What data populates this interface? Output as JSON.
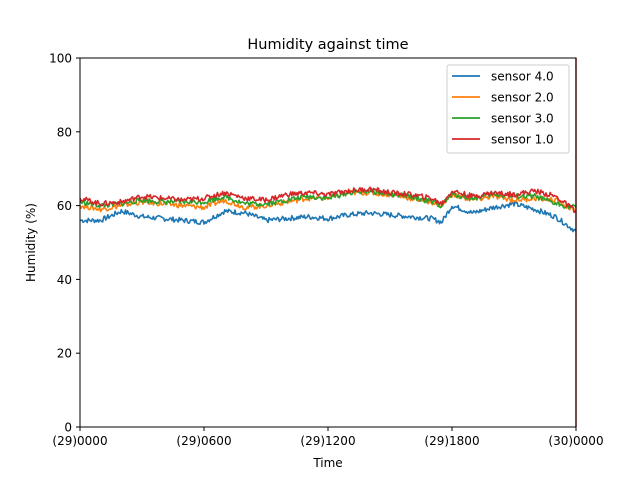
{
  "chart_data": {
    "type": "line",
    "title": "Humidity against  time",
    "xlabel": "Time",
    "ylabel": "Humidity (%)",
    "xlim": [
      0,
      24
    ],
    "ylim": [
      0,
      100
    ],
    "x_ticks": [
      {
        "value": 0,
        "label": "(29)0000"
      },
      {
        "value": 6,
        "label": "(29)0600"
      },
      {
        "value": 12,
        "label": "(29)1200"
      },
      {
        "value": 18,
        "label": "(29)1800"
      },
      {
        "value": 24,
        "label": "(30)0000"
      }
    ],
    "y_ticks": [
      0,
      20,
      40,
      60,
      80,
      100
    ],
    "grid": false,
    "legend_position": "top-right",
    "x": [
      0,
      1,
      2,
      3,
      4,
      5,
      6,
      7,
      8,
      9,
      10,
      11,
      12,
      13,
      14,
      15,
      16,
      17,
      17.5,
      18,
      19,
      20,
      21,
      22,
      23,
      24
    ],
    "series": [
      {
        "name": "sensor 4.0",
        "color": "#1f77b4",
        "values": [
          56,
          56,
          58.5,
          57,
          56.5,
          56,
          55.5,
          58.5,
          58,
          56,
          56.5,
          57,
          56.5,
          57.5,
          58,
          57.5,
          57,
          56.5,
          55.5,
          60,
          58,
          59.5,
          60.5,
          59,
          57,
          53
        ]
      },
      {
        "name": "sensor 2.0",
        "color": "#ff7f0e",
        "values": [
          60,
          59,
          60,
          61,
          60.5,
          60,
          59.5,
          61.5,
          59.5,
          60,
          61,
          62,
          62,
          63.5,
          63.5,
          63,
          62,
          61,
          60,
          63,
          61.5,
          62.5,
          61.5,
          62,
          61.5,
          58.5
        ]
      },
      {
        "name": "sensor 3.0",
        "color": "#2ca02c",
        "values": [
          61,
          60,
          60.5,
          61.5,
          61,
          61,
          61,
          62.5,
          60.5,
          60.5,
          61.5,
          62.5,
          62,
          63.5,
          64,
          63,
          62.5,
          61,
          60,
          63,
          62,
          63,
          62.5,
          62.5,
          60.5,
          59.5
        ]
      },
      {
        "name": "sensor 1.0",
        "color": "#d62728",
        "values": [
          62,
          60.5,
          61,
          62.5,
          62,
          61.5,
          62,
          63.5,
          62,
          61.5,
          63,
          63.5,
          63,
          64,
          64.5,
          63.5,
          63,
          62,
          60.5,
          64,
          62.5,
          63.5,
          63,
          64,
          62.5,
          58.5
        ]
      }
    ]
  }
}
